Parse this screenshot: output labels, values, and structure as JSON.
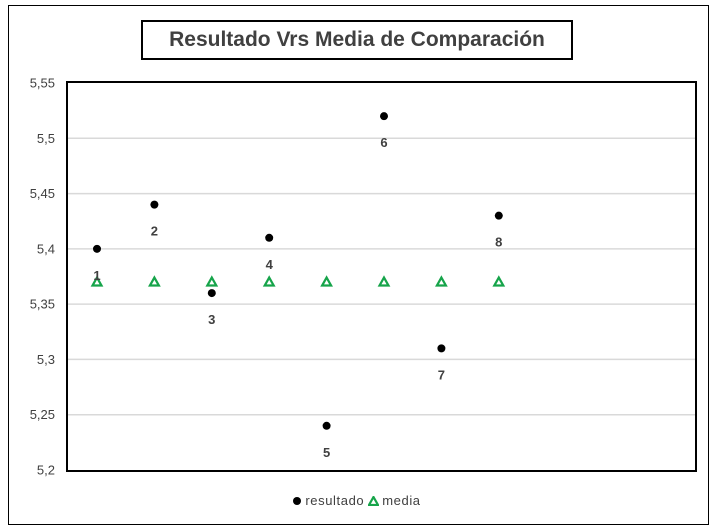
{
  "chart_data": {
    "type": "scatter",
    "title": "Resultado Vrs Media de Comparación",
    "x": [
      1,
      2,
      3,
      4,
      5,
      6,
      7,
      8
    ],
    "ylim": [
      5.2,
      5.55
    ],
    "yticks": [
      "5,2",
      "5,25",
      "5,3",
      "5,35",
      "5,4",
      "5,45",
      "5,5",
      "5,55"
    ],
    "yticks_values": [
      5.2,
      5.25,
      5.3,
      5.35,
      5.4,
      5.45,
      5.5,
      5.55
    ],
    "grid": true,
    "legend_position": "bottom",
    "series": [
      {
        "name": "resultado",
        "marker": "circle",
        "color": "#000000",
        "values": [
          5.4,
          5.44,
          5.36,
          5.41,
          5.24,
          5.52,
          5.31,
          5.43
        ],
        "labels": [
          "1",
          "2",
          "3",
          "4",
          "5",
          "6",
          "7",
          "8"
        ]
      },
      {
        "name": "media",
        "marker": "triangle",
        "color": "#16a44a",
        "values": [
          5.37,
          5.37,
          5.37,
          5.37,
          5.37,
          5.37,
          5.37,
          5.37
        ]
      }
    ]
  }
}
